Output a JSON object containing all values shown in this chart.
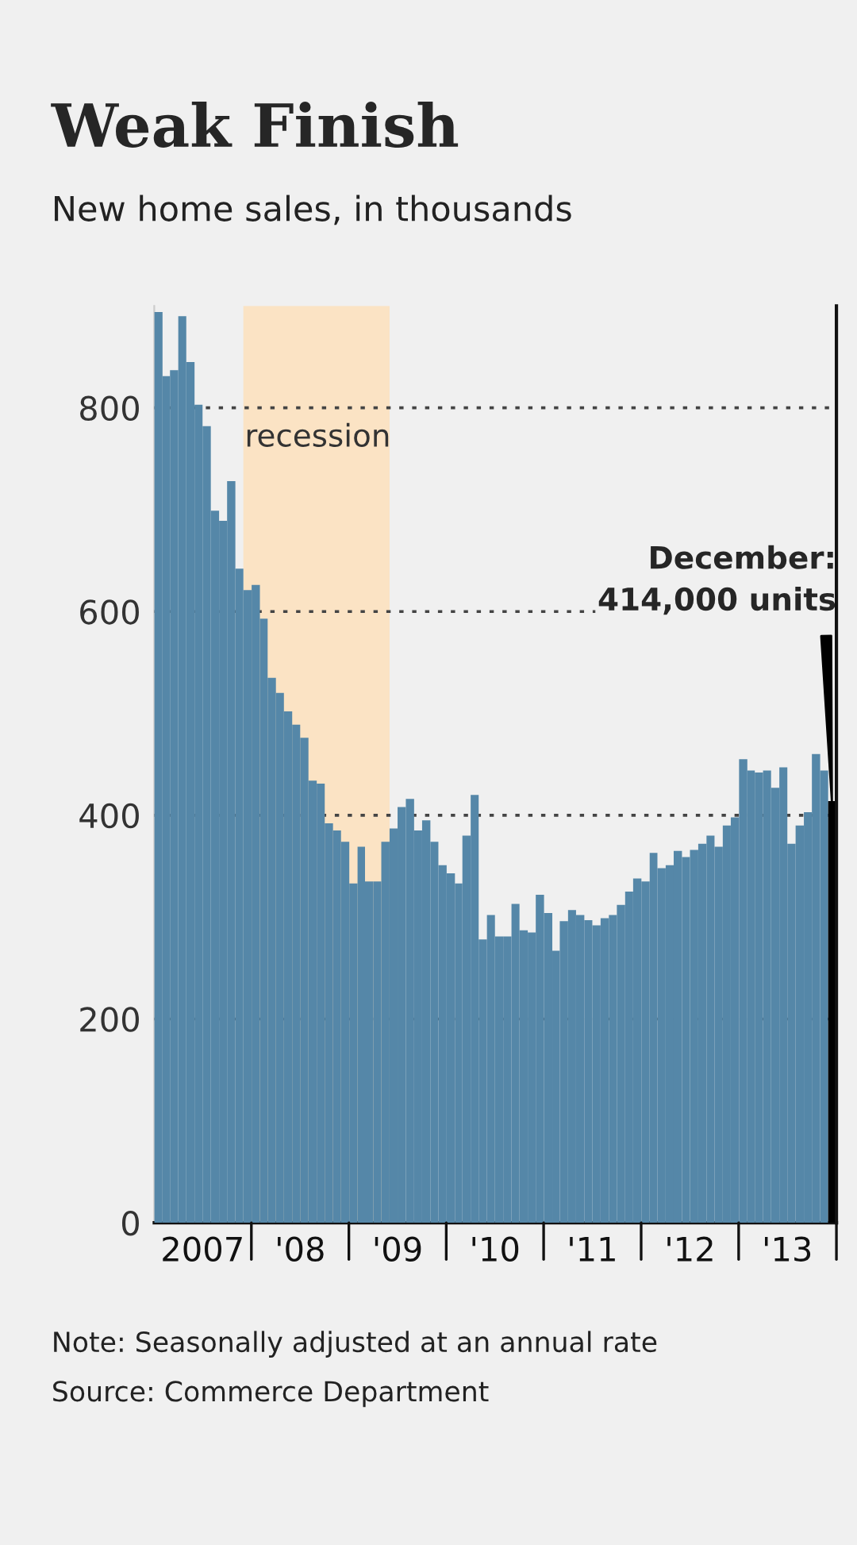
{
  "chart_data": {
    "type": "bar",
    "title": "Weak Finish",
    "subtitle": "New home sales, in thousands",
    "x": [
      "2007-01",
      "2007-02",
      "2007-03",
      "2007-04",
      "2007-05",
      "2007-06",
      "2007-07",
      "2007-08",
      "2007-09",
      "2007-10",
      "2007-11",
      "2007-12",
      "2008-01",
      "2008-02",
      "2008-03",
      "2008-04",
      "2008-05",
      "2008-06",
      "2008-07",
      "2008-08",
      "2008-09",
      "2008-10",
      "2008-11",
      "2008-12",
      "2009-01",
      "2009-02",
      "2009-03",
      "2009-04",
      "2009-05",
      "2009-06",
      "2009-07",
      "2009-08",
      "2009-09",
      "2009-10",
      "2009-11",
      "2009-12",
      "2010-01",
      "2010-02",
      "2010-03",
      "2010-04",
      "2010-05",
      "2010-06",
      "2010-07",
      "2010-08",
      "2010-09",
      "2010-10",
      "2010-11",
      "2010-12",
      "2011-01",
      "2011-02",
      "2011-03",
      "2011-04",
      "2011-05",
      "2011-06",
      "2011-07",
      "2011-08",
      "2011-09",
      "2011-10",
      "2011-11",
      "2011-12",
      "2012-01",
      "2012-02",
      "2012-03",
      "2012-04",
      "2012-05",
      "2012-06",
      "2012-07",
      "2012-08",
      "2012-09",
      "2012-10",
      "2012-11",
      "2012-12",
      "2013-01",
      "2013-02",
      "2013-03",
      "2013-04",
      "2013-05",
      "2013-06",
      "2013-07",
      "2013-08",
      "2013-09",
      "2013-10",
      "2013-11",
      "2013-12"
    ],
    "values": [
      894,
      831,
      837,
      890,
      845,
      803,
      782,
      699,
      689,
      728,
      642,
      621,
      626,
      593,
      535,
      520,
      502,
      489,
      476,
      434,
      431,
      392,
      385,
      374,
      333,
      369,
      335,
      335,
      374,
      387,
      408,
      416,
      385,
      395,
      374,
      351,
      343,
      333,
      380,
      420,
      278,
      302,
      281,
      281,
      313,
      287,
      285,
      322,
      304,
      267,
      296,
      307,
      302,
      297,
      292,
      299,
      302,
      312,
      325,
      338,
      335,
      363,
      348,
      351,
      365,
      359,
      366,
      372,
      380,
      369,
      390,
      398,
      455,
      444,
      442,
      444,
      427,
      447,
      372,
      390,
      403,
      460,
      444,
      414
    ],
    "colors": [
      "#5587a8",
      "#5587a8",
      "#5587a8",
      "#5587a8",
      "#5587a8",
      "#5587a8",
      "#5587a8",
      "#5587a8",
      "#5587a8",
      "#5587a8",
      "#5587a8",
      "#5587a8",
      "#5587a8",
      "#5587a8",
      "#5587a8",
      "#5587a8",
      "#5587a8",
      "#5587a8",
      "#5587a8",
      "#5587a8",
      "#5587a8",
      "#5587a8",
      "#5587a8",
      "#5587a8",
      "#5587a8",
      "#5587a8",
      "#5587a8",
      "#5587a8",
      "#5587a8",
      "#5587a8",
      "#5587a8",
      "#5587a8",
      "#5587a8",
      "#5587a8",
      "#5587a8",
      "#5587a8",
      "#5587a8",
      "#5587a8",
      "#5587a8",
      "#5587a8",
      "#5587a8",
      "#5587a8",
      "#5587a8",
      "#5587a8",
      "#5587a8",
      "#5587a8",
      "#5587a8",
      "#5587a8",
      "#5587a8",
      "#5587a8",
      "#5587a8",
      "#5587a8",
      "#5587a8",
      "#5587a8",
      "#5587a8",
      "#5587a8",
      "#5587a8",
      "#5587a8",
      "#5587a8",
      "#5587a8",
      "#5587a8",
      "#5587a8",
      "#5587a8",
      "#5587a8",
      "#5587a8",
      "#5587a8",
      "#5587a8",
      "#5587a8",
      "#5587a8",
      "#5587a8",
      "#5587a8",
      "#5587a8",
      "#5587a8",
      "#5587a8",
      "#5587a8",
      "#5587a8",
      "#5587a8",
      "#5587a8",
      "#5587a8",
      "#5587a8",
      "#5587a8",
      "#5587a8",
      "#5587a8",
      "#000000"
    ],
    "xlim": [
      "2007-01",
      "2014-01"
    ],
    "xticks": [
      {
        "value": "2007-07",
        "label": "2007"
      },
      {
        "value": "2008-07",
        "label": "'08"
      },
      {
        "value": "2009-07",
        "label": "'09"
      },
      {
        "value": "2010-07",
        "label": "'10"
      },
      {
        "value": "2011-07",
        "label": "'11"
      },
      {
        "value": "2012-07",
        "label": "'12"
      },
      {
        "value": "2013-07",
        "label": "'13"
      }
    ],
    "ylim": [
      0,
      900
    ],
    "yticks": [
      0,
      200,
      400,
      600,
      800
    ],
    "grid": "y",
    "bands": [
      {
        "axis": "x",
        "from": "2007-12",
        "to": "2009-06",
        "label": "recession",
        "color": "#fbe3c4"
      }
    ],
    "annotations": [
      {
        "text": "December:\n414,000 units",
        "x": "2013-12",
        "y": 414
      },
      "Note: Seasonally adjusted at an annual rate",
      "Source: Commerce Department"
    ]
  }
}
